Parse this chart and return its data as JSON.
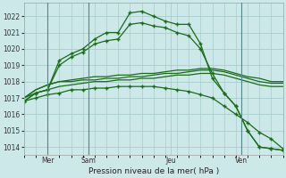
{
  "bg_color": "#cce8e8",
  "grid_color": "#aacccc",
  "line_color": "#1a6b1a",
  "title": "Pression niveau de la mer( hPa )",
  "ylim": [
    1013.5,
    1022.8
  ],
  "xlim": [
    0,
    22
  ],
  "yticks": [
    1014,
    1015,
    1016,
    1017,
    1018,
    1019,
    1020,
    1021,
    1022
  ],
  "day_ticks": [
    {
      "x": 2.0,
      "label": "Mer"
    },
    {
      "x": 5.5,
      "label": "Sam"
    },
    {
      "x": 12.5,
      "label": "Jeu"
    },
    {
      "x": 18.5,
      "label": "Ven"
    }
  ],
  "day_lines": [
    2.0,
    5.5,
    18.5
  ],
  "series": [
    {
      "x": [
        0,
        1,
        2,
        3,
        4,
        5,
        6,
        7,
        8,
        9,
        10,
        11,
        12,
        13,
        14,
        15,
        16,
        17,
        18,
        19,
        20,
        21,
        22
      ],
      "y": [
        1016.8,
        1017.3,
        1017.5,
        1019.3,
        1019.7,
        1020.0,
        1020.6,
        1021.0,
        1021.0,
        1022.2,
        1022.3,
        1022.0,
        1021.7,
        1021.5,
        1021.5,
        1020.3,
        1018.2,
        1017.3,
        1016.5,
        1015.0,
        1014.0,
        1013.9,
        1013.8
      ],
      "marker": true
    },
    {
      "x": [
        0,
        1,
        2,
        3,
        4,
        5,
        6,
        7,
        8,
        9,
        10,
        11,
        12,
        13,
        14,
        15,
        16,
        17,
        18,
        19,
        20,
        21,
        22
      ],
      "y": [
        1016.8,
        1017.3,
        1017.5,
        1019.0,
        1019.5,
        1019.8,
        1020.3,
        1020.5,
        1020.6,
        1021.5,
        1021.6,
        1021.4,
        1021.3,
        1021.0,
        1020.8,
        1020.0,
        1018.5,
        1017.3,
        1016.5,
        1015.0,
        1014.0,
        1013.9,
        1013.8
      ],
      "marker": true
    },
    {
      "x": [
        0,
        1,
        2,
        3,
        4,
        5,
        6,
        7,
        8,
        9,
        10,
        11,
        12,
        13,
        14,
        15,
        16,
        17,
        18,
        19,
        20,
        21,
        22
      ],
      "y": [
        1017.0,
        1017.5,
        1017.8,
        1018.0,
        1018.1,
        1018.2,
        1018.3,
        1018.3,
        1018.4,
        1018.4,
        1018.5,
        1018.5,
        1018.6,
        1018.7,
        1018.7,
        1018.8,
        1018.8,
        1018.7,
        1018.5,
        1018.3,
        1018.2,
        1018.0,
        1018.0
      ],
      "marker": false
    },
    {
      "x": [
        0,
        1,
        2,
        3,
        4,
        5,
        6,
        7,
        8,
        9,
        10,
        11,
        12,
        13,
        14,
        15,
        16,
        17,
        18,
        19,
        20,
        21,
        22
      ],
      "y": [
        1017.0,
        1017.5,
        1017.8,
        1018.0,
        1018.0,
        1018.1,
        1018.1,
        1018.2,
        1018.2,
        1018.3,
        1018.3,
        1018.4,
        1018.5,
        1018.5,
        1018.6,
        1018.7,
        1018.7,
        1018.6,
        1018.4,
        1018.2,
        1018.0,
        1017.9,
        1017.9
      ],
      "marker": false
    },
    {
      "x": [
        0,
        1,
        2,
        3,
        4,
        5,
        6,
        7,
        8,
        9,
        10,
        11,
        12,
        13,
        14,
        15,
        16,
        17,
        18,
        19,
        20,
        21,
        22
      ],
      "y": [
        1017.0,
        1017.3,
        1017.5,
        1017.7,
        1017.8,
        1017.9,
        1018.0,
        1018.0,
        1018.1,
        1018.1,
        1018.2,
        1018.2,
        1018.3,
        1018.4,
        1018.4,
        1018.5,
        1018.5,
        1018.4,
        1018.2,
        1018.0,
        1017.8,
        1017.7,
        1017.7
      ],
      "marker": false
    },
    {
      "x": [
        0,
        1,
        2,
        3,
        4,
        5,
        6,
        7,
        8,
        9,
        10,
        11,
        12,
        13,
        14,
        15,
        16,
        17,
        18,
        19,
        20,
        21,
        22
      ],
      "y": [
        1016.8,
        1017.0,
        1017.2,
        1017.3,
        1017.5,
        1017.5,
        1017.6,
        1017.6,
        1017.7,
        1017.7,
        1017.7,
        1017.7,
        1017.6,
        1017.5,
        1017.4,
        1017.2,
        1017.0,
        1016.5,
        1016.0,
        1015.5,
        1014.9,
        1014.5,
        1013.9
      ],
      "marker": true
    }
  ]
}
